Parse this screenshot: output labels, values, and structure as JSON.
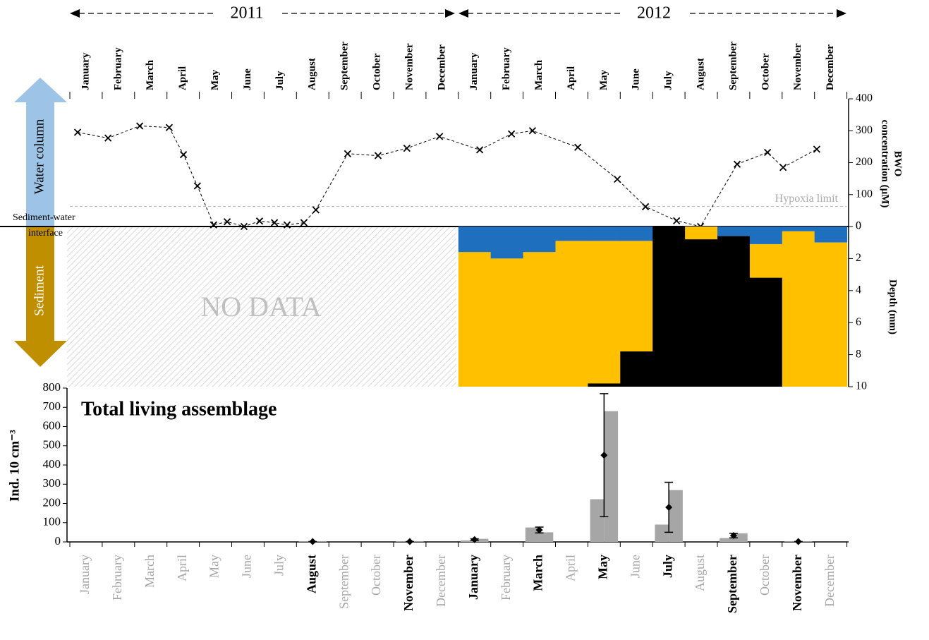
{
  "years": [
    "2011",
    "2012"
  ],
  "months": [
    "January",
    "February",
    "March",
    "April",
    "May",
    "June",
    "July",
    "August",
    "September",
    "October",
    "November",
    "December",
    "January",
    "February",
    "March",
    "April",
    "May",
    "June",
    "July",
    "August",
    "September",
    "October",
    "November",
    "December"
  ],
  "labels": {
    "water_column": "Water column",
    "sediment": "Sediment",
    "interface": [
      "Sediment-water",
      "interface"
    ],
    "no_data": "NO DATA"
  },
  "chart_data": [
    {
      "type": "line",
      "marker": "x",
      "dashed": true,
      "color": "#000000",
      "y_label": [
        "BWO",
        "concentration (µM)"
      ],
      "x": [
        0.24,
        1.18,
        2.16,
        3.07,
        3.51,
        3.94,
        4.44,
        4.86,
        5.38,
        5.86,
        6.32,
        6.71,
        7.23,
        7.6,
        8.58,
        9.52,
        10.41,
        11.42,
        12.66,
        13.64,
        14.29,
        15.69,
        16.91,
        17.78,
        18.74,
        19.48,
        20.61,
        21.55,
        22.03,
        23.07
      ],
      "values": [
        295,
        277,
        315,
        310,
        225,
        127,
        5,
        15,
        0,
        17,
        12,
        5,
        12,
        52,
        228,
        222,
        245,
        282,
        240,
        290,
        300,
        248,
        148,
        62,
        18,
        0,
        195,
        232,
        185,
        242
      ],
      "xlim": [
        0,
        24
      ],
      "ylim": [
        0,
        400
      ],
      "yticks": [
        0,
        100,
        200,
        300,
        400
      ],
      "hypoxia_limit": {
        "label": "Hypoxia limit",
        "value": 63
      }
    },
    {
      "type": "stacked_bar",
      "y_label": "Depth (mm)",
      "ylim": [
        0,
        10
      ],
      "yticks": [
        0,
        2,
        4,
        6,
        8,
        10
      ],
      "inverted": true,
      "series": [
        {
          "color": "#1f6fbf",
          "values": [
            null,
            null,
            null,
            null,
            null,
            null,
            null,
            null,
            null,
            null,
            null,
            null,
            1.6,
            2.0,
            1.6,
            0.9,
            0.9,
            0.9,
            0,
            0,
            0.6,
            1.1,
            0.3,
            1.0
          ]
        },
        {
          "color": "#ffc000",
          "values": [
            null,
            null,
            null,
            null,
            null,
            null,
            null,
            null,
            null,
            null,
            null,
            null,
            8.4,
            8.0,
            8.4,
            9.1,
            8.9,
            6.9,
            0,
            0.8,
            0,
            2.1,
            9.7,
            9.0
          ]
        },
        {
          "color": "#000000",
          "values": [
            null,
            null,
            null,
            null,
            null,
            null,
            null,
            null,
            null,
            null,
            null,
            null,
            0,
            0,
            0,
            0,
            0.2,
            2.2,
            10,
            9.2,
            9.4,
            6.8,
            0,
            0
          ]
        }
      ]
    },
    {
      "type": "bar_errorbar",
      "title": "Total living assemblage",
      "y_label": "Ind. 10 cm⁻³",
      "ylim": [
        0,
        800
      ],
      "yticks": [
        0,
        100,
        200,
        300,
        400,
        500,
        600,
        700,
        800
      ],
      "series": [
        {
          "color": "#a6a6a6",
          "values": [
            null,
            null,
            null,
            null,
            null,
            null,
            null,
            2,
            null,
            null,
            2,
            null,
            8,
            null,
            75,
            null,
            222,
            null,
            90,
            null,
            20,
            null,
            2,
            null
          ]
        },
        {
          "color": "#a6a6a6",
          "values": [
            null,
            null,
            null,
            null,
            null,
            null,
            null,
            2,
            null,
            null,
            2,
            null,
            16,
            null,
            50,
            null,
            680,
            null,
            270,
            null,
            45,
            null,
            2,
            null
          ]
        }
      ],
      "mean": {
        "color": "#000000",
        "values": [
          null,
          null,
          null,
          null,
          null,
          null,
          null,
          2,
          null,
          null,
          2,
          null,
          12,
          null,
          62,
          null,
          451,
          null,
          180,
          null,
          33,
          null,
          2,
          null
        ],
        "errors": [
          null,
          null,
          null,
          null,
          null,
          null,
          null,
          0,
          null,
          null,
          0,
          null,
          4,
          null,
          15,
          null,
          320,
          null,
          130,
          null,
          12,
          null,
          0,
          null
        ]
      },
      "emphasized": [
        false,
        false,
        false,
        false,
        false,
        false,
        false,
        true,
        false,
        false,
        true,
        false,
        true,
        false,
        true,
        false,
        true,
        false,
        true,
        false,
        true,
        false,
        true,
        false
      ]
    }
  ]
}
